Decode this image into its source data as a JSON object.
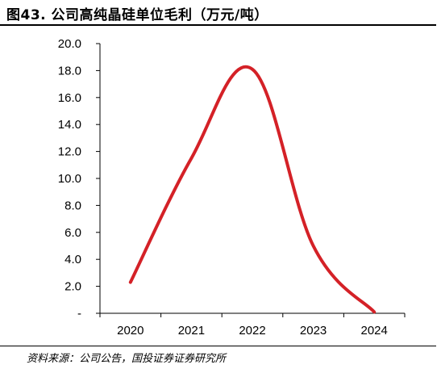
{
  "figure": {
    "title": "图43. 公司高纯晶硅单位毛利（万元/吨）",
    "source": "资料来源：公司公告，国投证券证券研究所"
  },
  "chart_data": {
    "type": "line",
    "title": "",
    "xlabel": "",
    "ylabel": "",
    "categories": [
      "2020",
      "2021",
      "2022",
      "2023",
      "2024"
    ],
    "series": [
      {
        "values": [
          2.3,
          11.5,
          18.1,
          5.0,
          0.1
        ],
        "color": "#d42127"
      }
    ],
    "ylim": [
      0,
      20
    ],
    "yticks": [
      {
        "value": 0,
        "label": "-"
      },
      {
        "value": 2,
        "label": "2.0"
      },
      {
        "value": 4,
        "label": "4.0"
      },
      {
        "value": 6,
        "label": "6.0"
      },
      {
        "value": 8,
        "label": "8.0"
      },
      {
        "value": 10,
        "label": "10.0"
      },
      {
        "value": 12,
        "label": "12.0"
      },
      {
        "value": 14,
        "label": "14.0"
      },
      {
        "value": 16,
        "label": "16.0"
      },
      {
        "value": 18,
        "label": "18.0"
      },
      {
        "value": 20,
        "label": "20.0"
      }
    ],
    "grid": false,
    "smooth": true
  }
}
